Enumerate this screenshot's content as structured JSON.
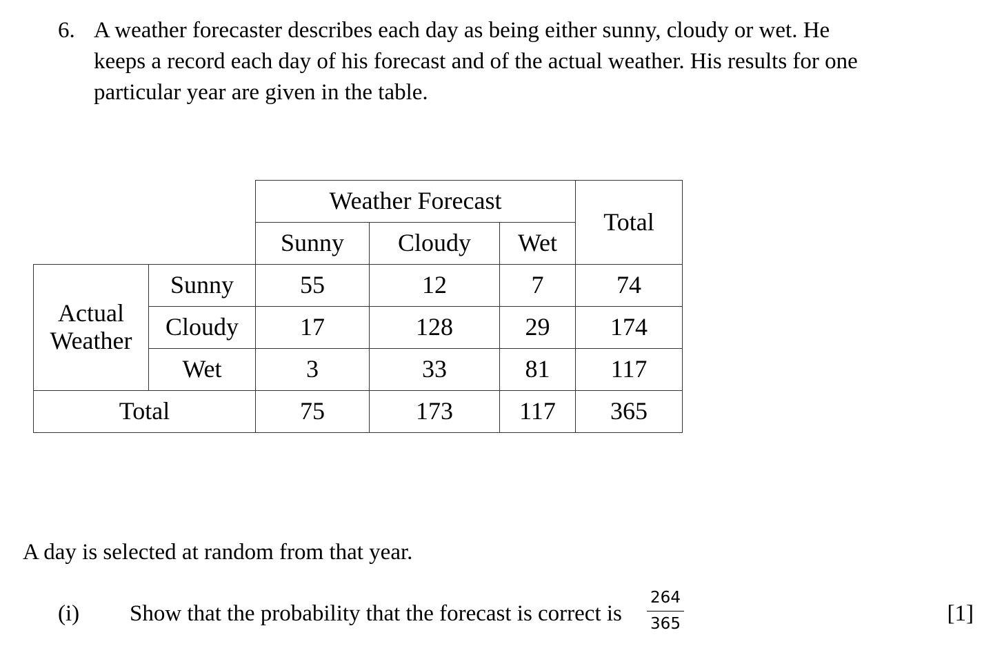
{
  "question": {
    "number": "6.",
    "intro_lines": [
      "A weather forecaster describes each day as being either sunny, cloudy or wet. He",
      "keeps a record each day of his forecast and of the actual weather. His results for one",
      "particular year are given in the table."
    ]
  },
  "table": {
    "forecast_header": "Weather Forecast",
    "total_header": "Total",
    "forecast_columns": [
      "Sunny",
      "Cloudy",
      "Wet"
    ],
    "actual_label_line1": "Actual",
    "actual_label_line2": "Weather",
    "rows": [
      {
        "label": "Sunny",
        "values": [
          "55",
          "12",
          "7"
        ],
        "total": "74"
      },
      {
        "label": "Cloudy",
        "values": [
          "17",
          "128",
          "29"
        ],
        "total": "174"
      },
      {
        "label": "Wet",
        "values": [
          "3",
          "33",
          "81"
        ],
        "total": "117"
      }
    ],
    "total_row": {
      "label": "Total",
      "values": [
        "75",
        "173",
        "117"
      ],
      "total": "365"
    }
  },
  "selection_text": "A day is selected at random from that year.",
  "part_i": {
    "label": "(i)",
    "text": "Show that the probability that the forecast is correct is",
    "fraction_numerator": "264",
    "fraction_denominator": "365",
    "marks": "[1]"
  }
}
